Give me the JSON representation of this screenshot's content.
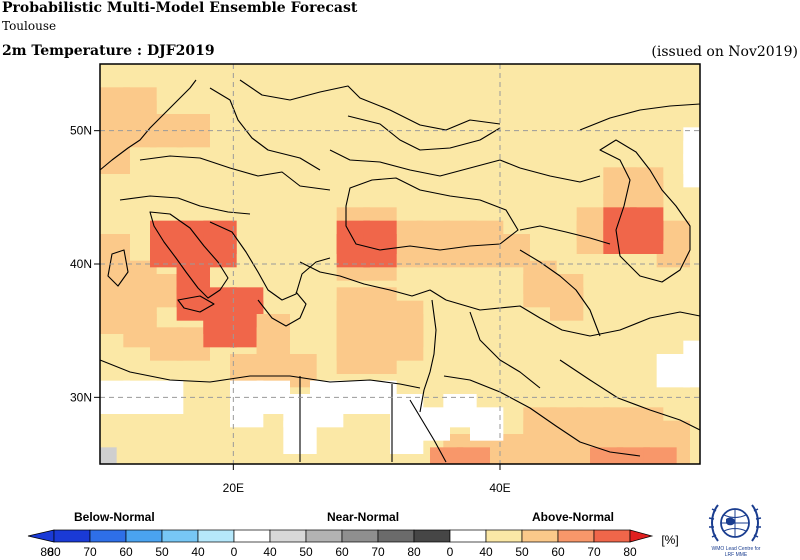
{
  "header": {
    "title": "Probabilistic Multi-Model Ensemble Forecast",
    "subtitle": "Toulouse",
    "variable_title": "2m Temperature : DJF2019",
    "issued": "(issued on Nov2019)"
  },
  "map": {
    "lon_range": [
      10,
      55
    ],
    "lat_range": [
      25,
      55
    ],
    "lon_ticks": [
      {
        "value": 20,
        "label": "20E"
      },
      {
        "value": 40,
        "label": "40E"
      }
    ],
    "lat_ticks": [
      {
        "value": 30,
        "label": "30N"
      },
      {
        "value": 40,
        "label": "40N"
      },
      {
        "value": 50,
        "label": "50N"
      }
    ],
    "grid": "dashed",
    "palette": {
      "above_40": "#fbe8a6",
      "above_50": "#fbc98a",
      "above_60": "#f8976a",
      "above_70": "#f0664a",
      "white": "#ffffff",
      "near_40": "#cfcfcf"
    },
    "base_category": "above_40",
    "cells": [
      [
        "above_50",
        11,
        52
      ],
      [
        "above_50",
        11,
        51
      ],
      [
        "above_50",
        11,
        50
      ],
      [
        "above_50",
        11,
        49
      ],
      [
        "above_50",
        11,
        48
      ],
      [
        "above_50",
        13,
        52
      ],
      [
        "above_50",
        13,
        51
      ],
      [
        "above_50",
        13,
        50
      ],
      [
        "above_50",
        15,
        50
      ],
      [
        "above_50",
        17,
        50
      ],
      [
        "above_50",
        11,
        41
      ],
      [
        "above_50",
        11,
        40
      ],
      [
        "above_50",
        11,
        39
      ],
      [
        "above_50",
        11,
        37
      ],
      [
        "above_50",
        11,
        36
      ],
      [
        "above_50",
        13,
        37
      ],
      [
        "above_50",
        13,
        36
      ],
      [
        "above_50",
        13,
        35
      ],
      [
        "above_50",
        15,
        34
      ],
      [
        "above_50",
        17,
        34
      ],
      [
        "above_50",
        13,
        39
      ],
      [
        "above_50",
        13,
        38
      ],
      [
        "above_50",
        15,
        38
      ],
      [
        "above_70",
        15,
        42
      ],
      [
        "above_70",
        15,
        41
      ],
      [
        "above_70",
        17,
        42
      ],
      [
        "above_70",
        17,
        41
      ],
      [
        "above_70",
        17,
        40
      ],
      [
        "above_70",
        19,
        42
      ],
      [
        "above_70",
        19,
        41
      ],
      [
        "above_70",
        17,
        39
      ],
      [
        "above_70",
        17,
        38
      ],
      [
        "above_70",
        17,
        37
      ],
      [
        "above_70",
        19,
        37
      ],
      [
        "above_70",
        19,
        36
      ],
      [
        "above_70",
        19,
        35
      ],
      [
        "above_70",
        21,
        37
      ],
      [
        "above_70",
        21,
        36
      ],
      [
        "above_70",
        21,
        35
      ],
      [
        "above_50",
        21,
        32
      ],
      [
        "above_50",
        23,
        32
      ],
      [
        "above_50",
        23,
        35
      ],
      [
        "above_50",
        23,
        34
      ],
      [
        "above_50",
        23,
        33
      ],
      [
        "above_50",
        25,
        32
      ],
      [
        "above_50",
        29,
        43
      ],
      [
        "above_50",
        31,
        43
      ],
      [
        "above_50",
        33,
        42
      ],
      [
        "above_50",
        33,
        41
      ],
      [
        "above_50",
        35,
        42
      ],
      [
        "above_50",
        35,
        41
      ],
      [
        "above_50",
        37,
        42
      ],
      [
        "above_50",
        37,
        41
      ],
      [
        "above_50",
        39,
        42
      ],
      [
        "above_50",
        39,
        41
      ],
      [
        "above_50",
        41,
        41
      ],
      [
        "above_50",
        29,
        40
      ],
      [
        "above_50",
        31,
        40
      ],
      [
        "above_70",
        29,
        42
      ],
      [
        "above_70",
        29,
        41
      ],
      [
        "above_70",
        31,
        42
      ],
      [
        "above_70",
        31,
        41
      ],
      [
        "above_50",
        29,
        37
      ],
      [
        "above_50",
        29,
        36
      ],
      [
        "above_50",
        31,
        37
      ],
      [
        "above_50",
        31,
        36
      ],
      [
        "above_50",
        31,
        35
      ],
      [
        "above_50",
        33,
        36
      ],
      [
        "above_50",
        29,
        35
      ],
      [
        "above_50",
        29,
        34
      ],
      [
        "above_50",
        29,
        33
      ],
      [
        "above_50",
        31,
        34
      ],
      [
        "above_50",
        31,
        33
      ],
      [
        "above_50",
        33,
        35
      ],
      [
        "above_50",
        33,
        34
      ],
      [
        "above_50",
        43,
        39
      ],
      [
        "above_50",
        43,
        38
      ],
      [
        "above_50",
        45,
        38
      ],
      [
        "above_50",
        45,
        37
      ],
      [
        "above_50",
        49,
        46
      ],
      [
        "above_50",
        51,
        46
      ],
      [
        "above_50",
        51,
        45
      ],
      [
        "above_50",
        47,
        43
      ],
      [
        "above_50",
        47,
        42
      ],
      [
        "above_50",
        49,
        44
      ],
      [
        "above_50",
        51,
        44
      ],
      [
        "above_50",
        51,
        43
      ],
      [
        "above_50",
        51,
        42
      ],
      [
        "above_50",
        53,
        42
      ],
      [
        "above_50",
        53,
        41
      ],
      [
        "above_70",
        49,
        43
      ],
      [
        "above_70",
        49,
        42
      ],
      [
        "above_70",
        51,
        43
      ],
      [
        "above_70",
        51,
        42
      ],
      [
        "above_50",
        43,
        28
      ],
      [
        "above_50",
        43,
        27
      ],
      [
        "above_50",
        45,
        28
      ],
      [
        "above_50",
        45,
        27
      ],
      [
        "above_50",
        47,
        28
      ],
      [
        "above_50",
        47,
        27
      ],
      [
        "above_50",
        49,
        28
      ],
      [
        "above_50",
        49,
        27
      ],
      [
        "above_50",
        51,
        28
      ],
      [
        "above_50",
        51,
        27
      ],
      [
        "above_50",
        53,
        27
      ],
      [
        "above_50",
        49,
        26
      ],
      [
        "above_50",
        45,
        26
      ],
      [
        "above_50",
        47,
        26
      ],
      [
        "above_50",
        51,
        26
      ],
      [
        "above_50",
        53,
        26
      ],
      [
        "above_50",
        37,
        26
      ],
      [
        "above_50",
        39,
        26
      ],
      [
        "above_50",
        41,
        26
      ],
      [
        "above_50",
        43,
        26
      ],
      [
        "above_60",
        36,
        25
      ],
      [
        "above_60",
        38,
        25
      ],
      [
        "above_60",
        48,
        25
      ],
      [
        "above_60",
        50,
        25
      ],
      [
        "above_60",
        52,
        25
      ],
      [
        "white",
        11,
        30
      ],
      [
        "white",
        13,
        30
      ],
      [
        "white",
        15,
        30
      ],
      [
        "white",
        21,
        30
      ],
      [
        "white",
        21,
        29
      ],
      [
        "white",
        23,
        30
      ],
      [
        "white",
        25,
        29
      ],
      [
        "white",
        27,
        30
      ],
      [
        "white",
        27,
        29
      ],
      [
        "white",
        29,
        30
      ],
      [
        "white",
        31,
        30
      ],
      [
        "white",
        33,
        29
      ],
      [
        "white",
        25,
        27
      ],
      [
        "white",
        33,
        27
      ],
      [
        "white",
        35,
        28
      ],
      [
        "white",
        37,
        29
      ],
      [
        "white",
        39,
        28
      ],
      [
        "white",
        53,
        32
      ],
      [
        "white",
        55,
        32
      ],
      [
        "white",
        55,
        33
      ],
      [
        "white",
        55,
        48
      ],
      [
        "white",
        55,
        49
      ],
      [
        "white",
        55,
        47
      ],
      [
        "near_40",
        10,
        25
      ]
    ],
    "borders": "country outlines"
  },
  "legend": {
    "below_label": "Below-Normal",
    "near_label": "Near-Normal",
    "above_label": "Above-Normal",
    "unit": "[%]",
    "below": [
      {
        "label": "80",
        "color": "#1a3ad6"
      },
      {
        "label": "70",
        "color": "#2e6fe8"
      },
      {
        "label": "60",
        "color": "#4aa3f0"
      },
      {
        "label": "50",
        "color": "#77c7f5"
      },
      {
        "label": "40",
        "color": "#b6e8fb"
      }
    ],
    "near": [
      {
        "label": "0",
        "color": "#ffffff"
      },
      {
        "label": "40",
        "color": "#d8d8d8"
      },
      {
        "label": "50",
        "color": "#b3b3b3"
      },
      {
        "label": "60",
        "color": "#8f8f8f"
      },
      {
        "label": "70",
        "color": "#6b6b6b"
      },
      {
        "label": "80",
        "color": "#464646"
      }
    ],
    "above": [
      {
        "label": "0",
        "color": "#ffffff"
      },
      {
        "label": "40",
        "color": "#fbe8a6"
      },
      {
        "label": "50",
        "color": "#fbc98a"
      },
      {
        "label": "60",
        "color": "#f8976a"
      },
      {
        "label": "70",
        "color": "#f0664a"
      },
      {
        "label": "80",
        "color": "#e02020"
      }
    ],
    "end_label": "80"
  },
  "logo": {
    "text_line1": "WMO Lead Centre for",
    "text_line2": "LRF MME"
  }
}
